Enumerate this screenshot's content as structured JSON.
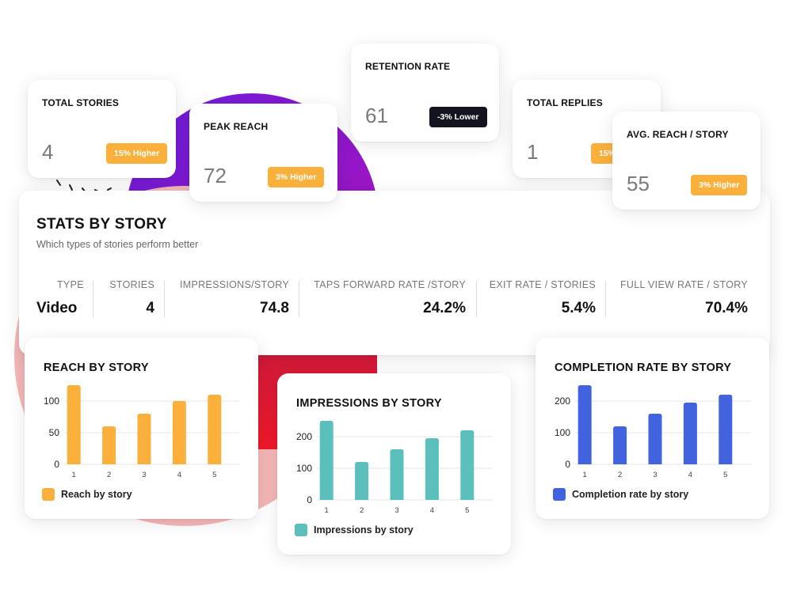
{
  "colors": {
    "orange": "#fbb03b",
    "teal": "#5bbfbb",
    "blue": "#4163e0",
    "dark_badge": "#141420"
  },
  "stat_cards": {
    "total_stories": {
      "title": "TOTAL STORIES",
      "value": "4",
      "badge": "15% Higher"
    },
    "peak_reach": {
      "title": "PEAK REACH",
      "value": "72",
      "badge": "3% Higher"
    },
    "retention_rate": {
      "title": "RETENTION RATE",
      "value": "61",
      "badge": "-3% Lower"
    },
    "total_replies": {
      "title": "TOTAL REPLIES",
      "value": "1",
      "badge": "15%"
    },
    "avg_reach": {
      "title": "AVG. REACH / STORY",
      "value": "55",
      "badge": "3% Higher"
    }
  },
  "stats_by_story": {
    "title": "STATS BY STORY",
    "subtitle": "Which types of stories perform better",
    "columns": [
      {
        "header": "TYPE",
        "value": "Video"
      },
      {
        "header": "STORIES",
        "value": "4"
      },
      {
        "header": "IMPRESSIONS/STORY",
        "value": "74.8"
      },
      {
        "header": "TAPS FORWARD RATE /STORY",
        "value": "24.2%"
      },
      {
        "header": "EXIT RATE / STORIES",
        "value": "5.4%"
      },
      {
        "header": "FULL VIEW RATE / STORY",
        "value": "70.4%"
      }
    ]
  },
  "chart_data": [
    {
      "type": "bar",
      "title": "REACH BY STORY",
      "categories": [
        "1",
        "2",
        "3",
        "4",
        "5"
      ],
      "series": [
        {
          "name": "Reach by story",
          "values": [
            125,
            60,
            80,
            100,
            110
          ]
        }
      ],
      "yticks": [
        0,
        50,
        100
      ],
      "ylim": [
        0,
        130
      ],
      "color": "#fbb03b",
      "grid": true,
      "legend": "bottom-left"
    },
    {
      "type": "bar",
      "title": "IMPRESSIONS BY STORY",
      "categories": [
        "1",
        "2",
        "3",
        "4",
        "5"
      ],
      "series": [
        {
          "name": "Impressions by story",
          "values": [
            250,
            120,
            160,
            195,
            220
          ]
        }
      ],
      "yticks": [
        0,
        100,
        200
      ],
      "ylim": [
        0,
        260
      ],
      "color": "#5bbfbb",
      "grid": true,
      "legend": "bottom-left"
    },
    {
      "type": "bar",
      "title": "COMPLETION RATE BY STORY",
      "categories": [
        "1",
        "2",
        "3",
        "4",
        "5"
      ],
      "series": [
        {
          "name": "Completion rate by story",
          "values": [
            250,
            120,
            160,
            195,
            220
          ]
        }
      ],
      "yticks": [
        0,
        100,
        200
      ],
      "ylim": [
        0,
        260
      ],
      "color": "#4163e0",
      "grid": true,
      "legend": "bottom-left"
    }
  ]
}
